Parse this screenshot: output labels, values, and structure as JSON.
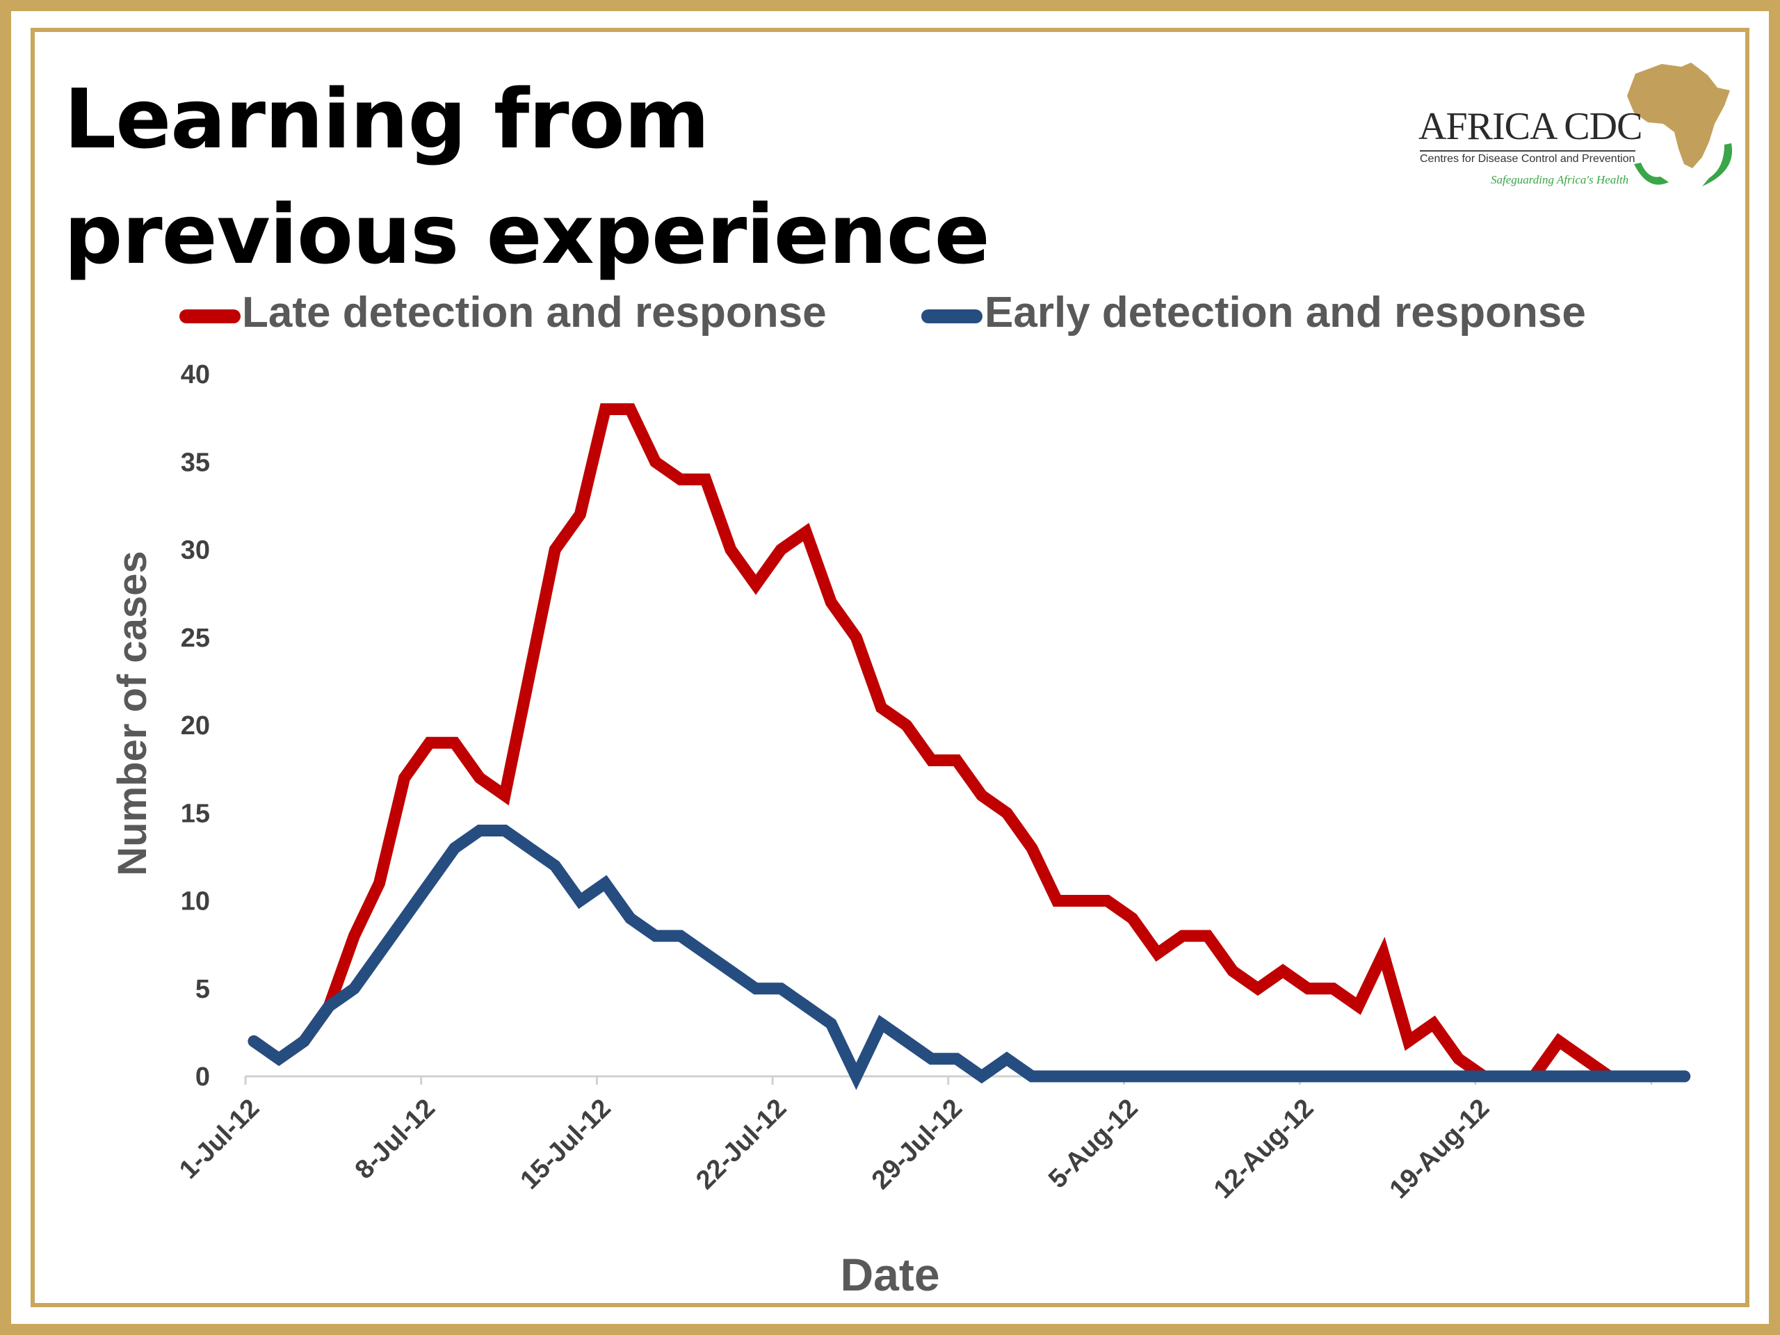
{
  "slide": {
    "title": "Learning from previous experience"
  },
  "logo": {
    "name": "AFRICA CDC",
    "subtitle": "Centres for Disease Control and Prevention",
    "tagline": "Safeguarding Africa's Health",
    "map_color": "#c2a05c",
    "hands_color": "#3aa649",
    "icon": "africa-map-icon"
  },
  "chart_data": {
    "type": "line",
    "title": "",
    "xlabel": "Date",
    "ylabel": "Number of cases",
    "x_start": "1-Jul-12",
    "x_end": "20-Aug-12",
    "x_ticks": [
      "1-Jul-12",
      "8-Jul-12",
      "15-Jul-12",
      "22-Jul-12",
      "29-Jul-12",
      "5-Aug-12",
      "12-Aug-12",
      "19-Aug-12"
    ],
    "y_ticks": [
      0,
      5,
      10,
      15,
      20,
      25,
      30,
      35,
      40
    ],
    "ylim": [
      0,
      40
    ],
    "grid": false,
    "legend_position": "top",
    "series": [
      {
        "name": "Late detection and response",
        "color": "#c00000",
        "points": [
          [
            "1-Jul-12",
            2
          ],
          [
            "2-Jul-12",
            1
          ],
          [
            "3-Jul-12",
            2
          ],
          [
            "4-Jul-12",
            4
          ],
          [
            "5-Jul-12",
            8
          ],
          [
            "6-Jul-12",
            11
          ],
          [
            "7-Jul-12",
            17
          ],
          [
            "8-Jul-12",
            19
          ],
          [
            "9-Jul-12",
            19
          ],
          [
            "10-Jul-12",
            17
          ],
          [
            "11-Jul-12",
            16
          ],
          [
            "12-Jul-12",
            23
          ],
          [
            "13-Jul-12",
            30
          ],
          [
            "14-Jul-12",
            32
          ],
          [
            "15-Jul-12",
            38
          ],
          [
            "16-Jul-12",
            38
          ],
          [
            "17-Jul-12",
            35
          ],
          [
            "18-Jul-12",
            34
          ],
          [
            "19-Jul-12",
            34
          ],
          [
            "20-Jul-12",
            30
          ],
          [
            "21-Jul-12",
            28
          ],
          [
            "22-Jul-12",
            30
          ],
          [
            "23-Jul-12",
            31
          ],
          [
            "24-Jul-12",
            27
          ],
          [
            "25-Jul-12",
            25
          ],
          [
            "26-Jul-12",
            21
          ],
          [
            "27-Jul-12",
            20
          ],
          [
            "28-Jul-12",
            18
          ],
          [
            "29-Jul-12",
            18
          ],
          [
            "30-Jul-12",
            16
          ],
          [
            "31-Jul-12",
            15
          ],
          [
            "1-Aug-12",
            13
          ],
          [
            "2-Aug-12",
            10
          ],
          [
            "3-Aug-12",
            10
          ],
          [
            "4-Aug-12",
            10
          ],
          [
            "5-Aug-12",
            9
          ],
          [
            "6-Aug-12",
            7
          ],
          [
            "7-Aug-12",
            8
          ],
          [
            "8-Aug-12",
            8
          ],
          [
            "9-Aug-12",
            6
          ],
          [
            "10-Aug-12",
            5
          ],
          [
            "11-Aug-12",
            6
          ],
          [
            "12-Aug-12",
            5
          ],
          [
            "13-Aug-12",
            5
          ],
          [
            "14-Aug-12",
            4
          ],
          [
            "15-Aug-12",
            7
          ],
          [
            "16-Aug-12",
            2
          ],
          [
            "17-Aug-12",
            3
          ],
          [
            "18-Aug-12",
            1
          ],
          [
            "19-Aug-12",
            0
          ],
          [
            "20-Aug-12",
            0
          ],
          [
            "21-Aug-12",
            0
          ],
          [
            "22-Aug-12",
            2
          ],
          [
            "23-Aug-12",
            1
          ],
          [
            "24-Aug-12",
            0
          ],
          [
            "25-Aug-12",
            0
          ],
          [
            "26-Aug-12",
            0
          ],
          [
            "27-Aug-12",
            0
          ]
        ]
      },
      {
        "name": "Early detection and response",
        "color": "#264d80",
        "points": [
          [
            "1-Jul-12",
            2
          ],
          [
            "2-Jul-12",
            1
          ],
          [
            "3-Jul-12",
            2
          ],
          [
            "4-Jul-12",
            4
          ],
          [
            "5-Jul-12",
            5
          ],
          [
            "6-Jul-12",
            7
          ],
          [
            "7-Jul-12",
            9
          ],
          [
            "8-Jul-12",
            11
          ],
          [
            "9-Jul-12",
            13
          ],
          [
            "10-Jul-12",
            14
          ],
          [
            "11-Jul-12",
            14
          ],
          [
            "12-Jul-12",
            13
          ],
          [
            "13-Jul-12",
            12
          ],
          [
            "14-Jul-12",
            10
          ],
          [
            "15-Jul-12",
            11
          ],
          [
            "16-Jul-12",
            9
          ],
          [
            "17-Jul-12",
            8
          ],
          [
            "18-Jul-12",
            8
          ],
          [
            "19-Jul-12",
            7
          ],
          [
            "20-Jul-12",
            6
          ],
          [
            "21-Jul-12",
            5
          ],
          [
            "22-Jul-12",
            5
          ],
          [
            "23-Jul-12",
            4
          ],
          [
            "24-Jul-12",
            3
          ],
          [
            "25-Jul-12",
            0
          ],
          [
            "26-Jul-12",
            3
          ],
          [
            "27-Jul-12",
            2
          ],
          [
            "28-Jul-12",
            1
          ],
          [
            "29-Jul-12",
            1
          ],
          [
            "30-Jul-12",
            0
          ],
          [
            "31-Jul-12",
            1
          ],
          [
            "1-Aug-12",
            0
          ],
          [
            "2-Aug-12",
            0
          ],
          [
            "3-Aug-12",
            0
          ],
          [
            "4-Aug-12",
            0
          ],
          [
            "5-Aug-12",
            0
          ],
          [
            "6-Aug-12",
            0
          ],
          [
            "7-Aug-12",
            0
          ],
          [
            "8-Aug-12",
            0
          ],
          [
            "9-Aug-12",
            0
          ],
          [
            "10-Aug-12",
            0
          ],
          [
            "11-Aug-12",
            0
          ],
          [
            "12-Aug-12",
            0
          ],
          [
            "13-Aug-12",
            0
          ],
          [
            "14-Aug-12",
            0
          ],
          [
            "15-Aug-12",
            0
          ],
          [
            "16-Aug-12",
            0
          ],
          [
            "17-Aug-12",
            0
          ],
          [
            "18-Aug-12",
            0
          ],
          [
            "19-Aug-12",
            0
          ],
          [
            "20-Aug-12",
            0
          ],
          [
            "21-Aug-12",
            0
          ],
          [
            "22-Aug-12",
            0
          ],
          [
            "23-Aug-12",
            0
          ],
          [
            "24-Aug-12",
            0
          ],
          [
            "25-Aug-12",
            0
          ],
          [
            "26-Aug-12",
            0
          ],
          [
            "27-Aug-12",
            0
          ]
        ]
      }
    ]
  }
}
